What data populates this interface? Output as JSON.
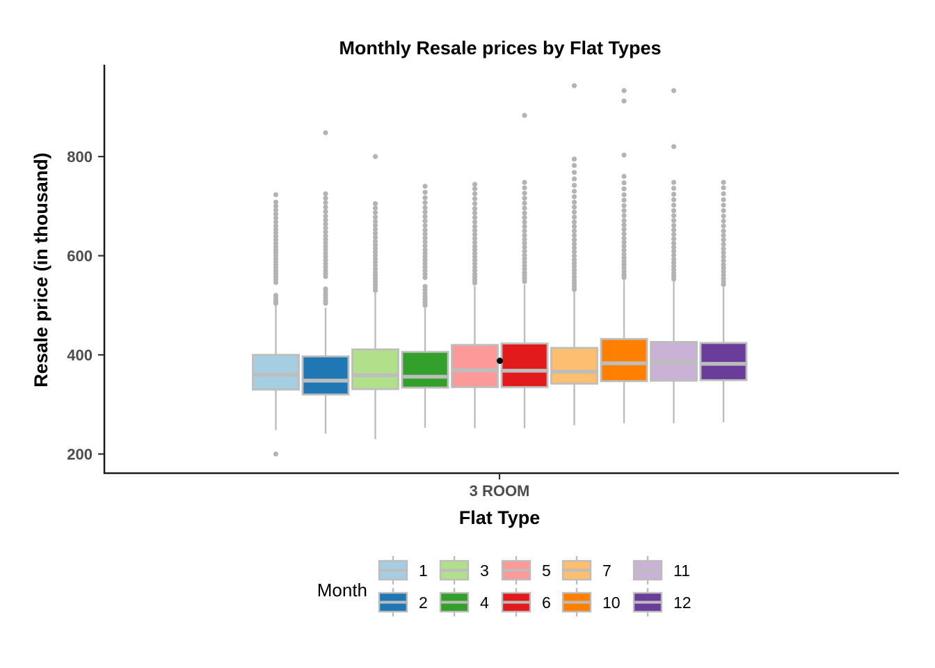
{
  "chart": {
    "title": "Monthly Resale prices by Flat Types",
    "y_axis": {
      "title": "Resale price (in thousand)",
      "ticks": [
        200,
        400,
        600,
        800
      ]
    },
    "x_axis": {
      "title": "Flat Type",
      "tick_label": "3 ROOM"
    }
  },
  "legend": {
    "title": "Month",
    "columns": [
      [
        "1",
        "2"
      ],
      [
        "3",
        "4"
      ],
      [
        "5",
        "6"
      ],
      [
        "7",
        "10"
      ],
      [
        "11",
        "12"
      ]
    ]
  },
  "style": {
    "background": "#FFFFFF",
    "axis_color": "#1A1A1A",
    "tick_mark_color": "#333333",
    "tick_label_color": "#4D4D4D",
    "box_stroke": "#BDBDBD",
    "whisker_color": "#BDBDBD",
    "median_color": "#BDBDBD",
    "outlier_color": "#B3B3B3",
    "black_point_color": "#000000"
  },
  "chart_data": {
    "type": "boxplot",
    "title": "Monthly Resale prices by Flat Types",
    "xlabel": "Flat Type",
    "ylabel": "Resale price (in thousand)",
    "category": "3 ROOM",
    "legend_title": "Month",
    "legend_position": "bottom",
    "grid": false,
    "ylim": [
      163,
      982
    ],
    "yticks": [
      200,
      400,
      600,
      800
    ],
    "series": [
      {
        "month": "1",
        "color": "#A6CEE3",
        "whisker_low": 248,
        "q1": 330,
        "median": 360,
        "q3": 400,
        "whisker_high": 500,
        "outliers": [
          200,
          504,
          509,
          514,
          520,
          546,
          552,
          558,
          564,
          570,
          576,
          582,
          588,
          594,
          600,
          606,
          612,
          618,
          625,
          632,
          639,
          646,
          653,
          660,
          668,
          676,
          684,
          692,
          700,
          708,
          723
        ]
      },
      {
        "month": "2",
        "color": "#1F78B4",
        "whisker_low": 241,
        "q1": 320,
        "median": 348,
        "q3": 397,
        "whisker_high": 495,
        "outliers": [
          504,
          509,
          515,
          521,
          527,
          533,
          558,
          564,
          570,
          577,
          584,
          591,
          598,
          605,
          612,
          619,
          626,
          633,
          640,
          648,
          656,
          664,
          672,
          680,
          689,
          698,
          707,
          716,
          725,
          848
        ]
      },
      {
        "month": "3",
        "color": "#B2DF8A",
        "whisker_low": 230,
        "q1": 331,
        "median": 359,
        "q3": 411,
        "whisker_high": 525,
        "outliers": [
          530,
          536,
          542,
          548,
          554,
          560,
          566,
          573,
          580,
          587,
          594,
          601,
          608,
          615,
          622,
          629,
          637,
          645,
          653,
          661,
          669,
          678,
          687,
          696,
          705,
          800
        ]
      },
      {
        "month": "4",
        "color": "#33A02C",
        "whisker_low": 253,
        "q1": 334,
        "median": 356,
        "q3": 406,
        "whisker_high": 495,
        "outliers": [
          500,
          506,
          512,
          518,
          524,
          531,
          538,
          556,
          563,
          570,
          577,
          584,
          591,
          598,
          605,
          612,
          620,
          628,
          636,
          644,
          652,
          661,
          670,
          679,
          688,
          697,
          707,
          717,
          728,
          740
        ]
      },
      {
        "month": "5",
        "color": "#FB9A99",
        "whisker_low": 252,
        "q1": 335,
        "median": 369,
        "q3": 420,
        "whisker_high": 539,
        "outliers": [
          545,
          551,
          557,
          563,
          570,
          577,
          584,
          591,
          598,
          605,
          612,
          619,
          627,
          635,
          643,
          651,
          659,
          668,
          677,
          686,
          695,
          705,
          715,
          725,
          735,
          744
        ]
      },
      {
        "month": "6",
        "color": "#E31A1C",
        "whisker_low": 252,
        "q1": 335,
        "median": 368,
        "q3": 423,
        "whisker_high": 542,
        "outliers": [
          548,
          554,
          560,
          566,
          573,
          580,
          587,
          594,
          601,
          609,
          617,
          625,
          633,
          641,
          650,
          659,
          668,
          677,
          686,
          696,
          706,
          716,
          726,
          737,
          748,
          883
        ]
      },
      {
        "month": "7",
        "color": "#FDBF6F",
        "whisker_low": 258,
        "q1": 342,
        "median": 366,
        "q3": 414,
        "whisker_high": 528,
        "outliers": [
          532,
          538,
          544,
          550,
          557,
          564,
          571,
          578,
          585,
          592,
          600,
          608,
          616,
          624,
          632,
          641,
          650,
          659,
          668,
          678,
          688,
          698,
          708,
          719,
          730,
          742,
          755,
          768,
          782,
          795,
          943
        ]
      },
      {
        "month": "10",
        "color": "#FF7F00",
        "whisker_low": 262,
        "q1": 347,
        "median": 383,
        "q3": 432,
        "whisker_high": 551,
        "outliers": [
          556,
          562,
          568,
          575,
          582,
          589,
          596,
          603,
          611,
          619,
          627,
          635,
          644,
          653,
          662,
          671,
          681,
          691,
          701,
          712,
          723,
          735,
          747,
          760,
          803,
          912,
          933
        ]
      },
      {
        "month": "11",
        "color": "#CAB2D6",
        "whisker_low": 262,
        "q1": 348,
        "median": 385,
        "q3": 426,
        "whisker_high": 549,
        "outliers": [
          553,
          559,
          565,
          572,
          579,
          586,
          593,
          601,
          609,
          617,
          625,
          634,
          643,
          652,
          661,
          671,
          681,
          691,
          702,
          713,
          724,
          736,
          748,
          820,
          933
        ]
      },
      {
        "month": "12",
        "color": "#6A3D9A",
        "whisker_low": 264,
        "q1": 349,
        "median": 382,
        "q3": 424,
        "whisker_high": 538,
        "outliers": [
          542,
          548,
          554,
          561,
          568,
          575,
          582,
          590,
          598,
          606,
          614,
          623,
          632,
          641,
          650,
          660,
          670,
          680,
          691,
          702,
          713,
          725,
          737,
          748
        ]
      }
    ],
    "extra_points": [
      {
        "month": "6",
        "value": 388,
        "position": "left-edge-of-box",
        "color": "#000000"
      }
    ]
  }
}
